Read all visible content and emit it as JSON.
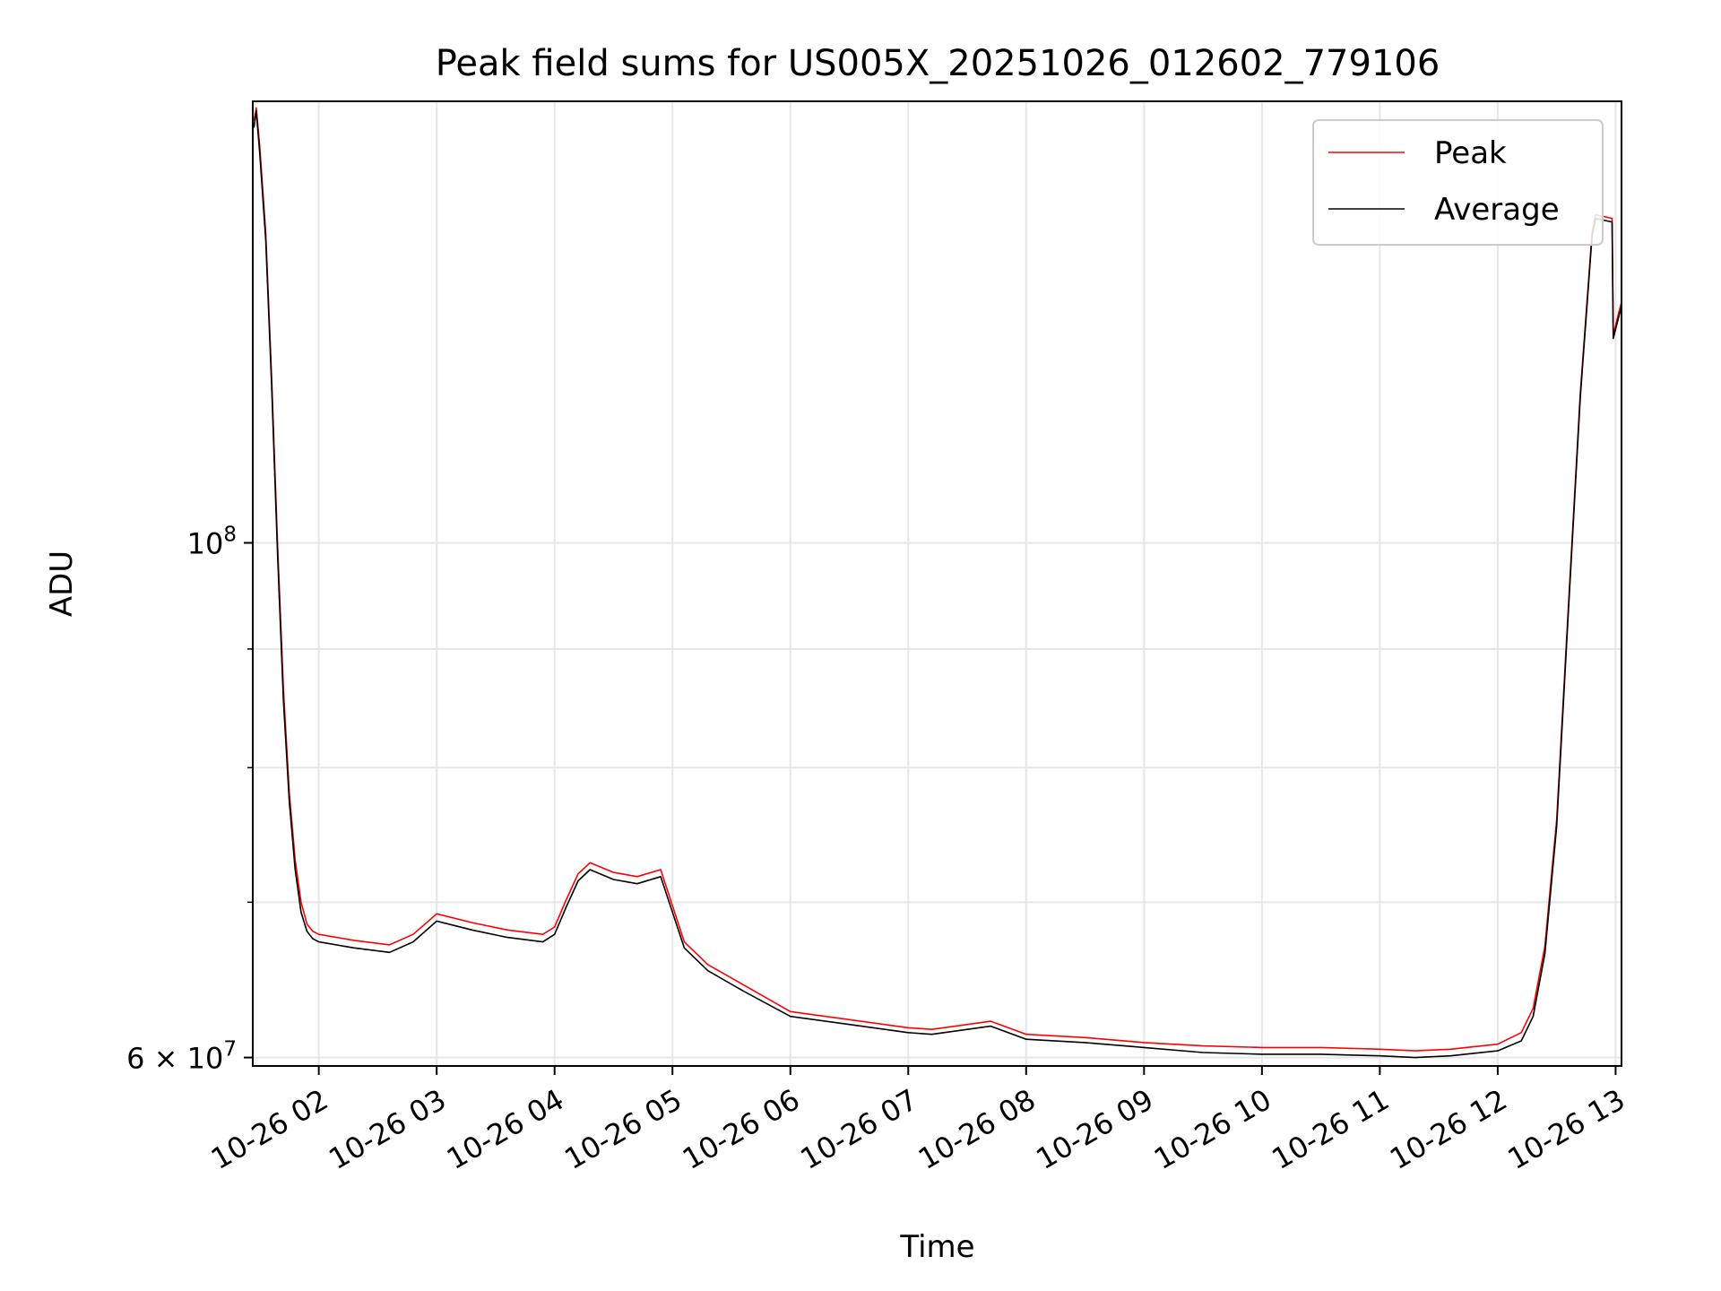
{
  "chart_data": {
    "type": "line",
    "title": "Peak field sums for US005X_20251026_012602_779106",
    "xlabel": "Time",
    "ylabel": "ADU",
    "yscale": "log",
    "ylim": [
      59500000,
      155000000
    ],
    "xlim": [
      1.44,
      13.05
    ],
    "x_ticks": [
      {
        "value": 2,
        "label": "10-26 02"
      },
      {
        "value": 3,
        "label": "10-26 03"
      },
      {
        "value": 4,
        "label": "10-26 04"
      },
      {
        "value": 5,
        "label": "10-26 05"
      },
      {
        "value": 6,
        "label": "10-26 06"
      },
      {
        "value": 7,
        "label": "10-26 07"
      },
      {
        "value": 8,
        "label": "10-26 08"
      },
      {
        "value": 9,
        "label": "10-26 09"
      },
      {
        "value": 10,
        "label": "10-26 10"
      },
      {
        "value": 11,
        "label": "10-26 11"
      },
      {
        "value": 12,
        "label": "10-26 12"
      },
      {
        "value": 13,
        "label": "10-26 13"
      }
    ],
    "y_major_ticks": [
      {
        "value": 60000000,
        "base": "6 × 10",
        "exp": "7"
      },
      {
        "value": 100000000,
        "base": "10",
        "exp": "8"
      }
    ],
    "y_minor_ticks": [
      70000000,
      80000000,
      90000000
    ],
    "grid": true,
    "legend_position": "top-right",
    "series": [
      {
        "name": "Peak",
        "color": "#ff0000",
        "x": [
          1.45,
          1.47,
          1.5,
          1.55,
          1.6,
          1.65,
          1.7,
          1.75,
          1.8,
          1.85,
          1.9,
          1.95,
          2.0,
          2.3,
          2.6,
          2.8,
          3.0,
          3.3,
          3.6,
          3.9,
          4.0,
          4.1,
          4.2,
          4.3,
          4.5,
          4.7,
          4.9,
          5.1,
          5.3,
          5.6,
          6.0,
          6.5,
          7.0,
          7.2,
          7.7,
          8.0,
          8.5,
          9.0,
          9.5,
          10.0,
          10.5,
          11.0,
          11.3,
          11.6,
          12.0,
          12.2,
          12.3,
          12.4,
          12.5,
          12.6,
          12.7,
          12.8,
          12.83,
          12.97,
          12.98,
          13.05
        ],
        "y": [
          152000000,
          154000000,
          148000000,
          136000000,
          118000000,
          100000000,
          86500000,
          78000000,
          73000000,
          70000000,
          68500000,
          68000000,
          67800000,
          67400000,
          67100000,
          67800000,
          69200000,
          68600000,
          68100000,
          67800000,
          68300000,
          70200000,
          72000000,
          72800000,
          72100000,
          71800000,
          72300000,
          67300000,
          65800000,
          64500000,
          62800000,
          62300000,
          61800000,
          61700000,
          62200000,
          61400000,
          61200000,
          60900000,
          60700000,
          60600000,
          60600000,
          60500000,
          60400000,
          60500000,
          60800000,
          61500000,
          63000000,
          67000000,
          76000000,
          94000000,
          116000000,
          136000000,
          138500000,
          138000000,
          123000000,
          127000000
        ]
      },
      {
        "name": "Average",
        "color": "#000000",
        "x": [
          1.45,
          1.47,
          1.5,
          1.55,
          1.6,
          1.65,
          1.7,
          1.75,
          1.8,
          1.85,
          1.9,
          1.95,
          2.0,
          2.3,
          2.6,
          2.8,
          3.0,
          3.3,
          3.6,
          3.9,
          4.0,
          4.1,
          4.2,
          4.3,
          4.5,
          4.7,
          4.9,
          5.1,
          5.3,
          5.6,
          6.0,
          6.5,
          7.0,
          7.2,
          7.7,
          8.0,
          8.5,
          9.0,
          9.5,
          10.0,
          10.5,
          11.0,
          11.3,
          11.6,
          12.0,
          12.2,
          12.3,
          12.4,
          12.5,
          12.6,
          12.7,
          12.8,
          12.83,
          12.97,
          12.98,
          13.05
        ],
        "y": [
          151000000,
          153500000,
          147000000,
          135000000,
          117000000,
          99000000,
          85500000,
          77300000,
          72300000,
          69300000,
          68000000,
          67500000,
          67300000,
          66900000,
          66600000,
          67300000,
          68700000,
          68100000,
          67600000,
          67300000,
          67800000,
          69700000,
          71500000,
          72300000,
          71600000,
          71300000,
          71800000,
          66900000,
          65400000,
          64100000,
          62500000,
          62000000,
          61500000,
          61400000,
          61900000,
          61100000,
          60900000,
          60600000,
          60300000,
          60200000,
          60200000,
          60100000,
          60000000,
          60100000,
          60400000,
          61000000,
          62500000,
          66500000,
          75500000,
          93500000,
          115500000,
          135500000,
          138000000,
          137500000,
          122500000,
          126500000
        ]
      }
    ]
  }
}
